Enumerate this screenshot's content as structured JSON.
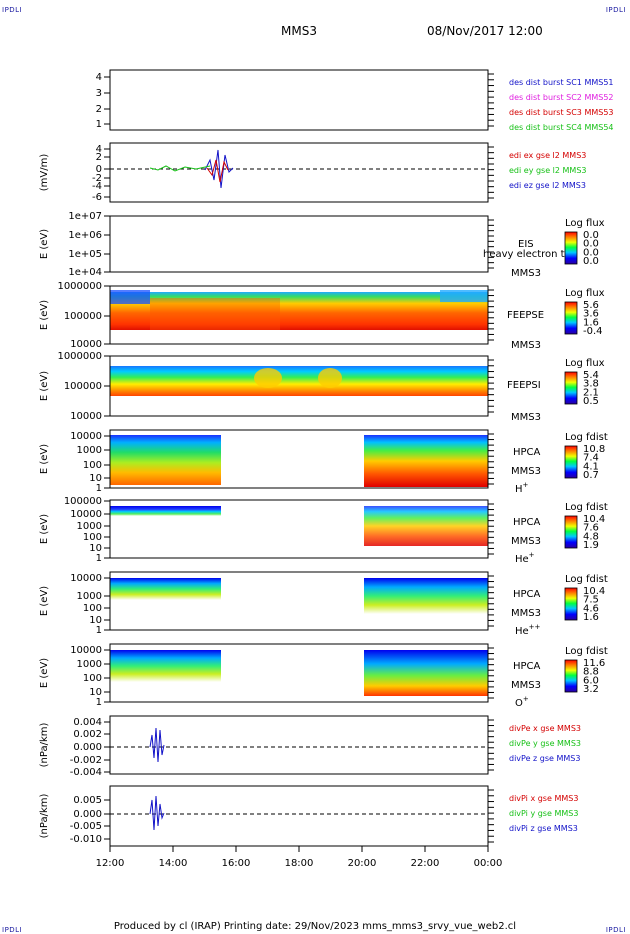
{
  "header": {
    "corner_tl": "IPDLI",
    "corner_tr": "IPDLI",
    "corner_bl": "IPDLI",
    "corner_br": "IPDLI",
    "title": "MMS3",
    "datetime": "08/Nov/2017 12:00"
  },
  "footer": {
    "text": "Produced by cl (IRAP)   Printing date: 29/Nov/2023   mms_mms3_srvy_vue_web2.cl"
  },
  "colors": {
    "red": "#d40000",
    "green": "#16c016",
    "blue": "#1212c8",
    "magenta": "#e020e0"
  },
  "chart_data": {
    "type": "stacked-panels",
    "x": {
      "ticks": [
        "12:00",
        "14:00",
        "16:00",
        "18:00",
        "20:00",
        "22:00",
        "00:00"
      ]
    },
    "panels": [
      {
        "id": "p1",
        "ylabel": "",
        "ticks": [
          "1",
          "2",
          "3",
          "4"
        ],
        "legend": [
          {
            "text": "des dist burst SC1 MMS51",
            "color": "#1212c8"
          },
          {
            "text": "des dist burst SC2 MMS52",
            "color": "#e020e0"
          },
          {
            "text": "des dist burst SC3 MMS53",
            "color": "#d40000"
          },
          {
            "text": "des dist burst SC4 MMS54",
            "color": "#16c016"
          }
        ]
      },
      {
        "id": "p2",
        "ylabel": "(mV/m)",
        "ticks": [
          "4",
          "2",
          "0",
          "-2",
          "-4",
          "-6"
        ],
        "legend": [
          {
            "text": "edi ex gse l2 MMS3",
            "color": "#d40000"
          },
          {
            "text": "edi ey gse l2 MMS3",
            "color": "#16c016"
          },
          {
            "text": "edi ez gse l2 MMS3",
            "color": "#1212c8"
          }
        ]
      },
      {
        "id": "p3",
        "ylabel": "E (eV)",
        "ticks": [
          "1e+07",
          "1e+06",
          "1e+05",
          "1e+04"
        ],
        "label1": "EIS",
        "label2": "heavy electron tof",
        "label3": "MMS3",
        "cb_title": "Log flux",
        "cb_ticks": [
          "0.0",
          "0.0",
          "0.0",
          "0.0"
        ]
      },
      {
        "id": "p4",
        "ylabel": "E (eV)",
        "ticks": [
          "1000000",
          "100000",
          "10000"
        ],
        "label1": "FEEPSE",
        "label2": "MMS3",
        "cb_title": "Log flux",
        "cb_ticks": [
          "5.6",
          "3.6",
          "1.6",
          "-0.4"
        ]
      },
      {
        "id": "p5",
        "ylabel": "E (eV)",
        "ticks": [
          "1000000",
          "100000",
          "10000"
        ],
        "label1": "FEEPSI",
        "label2": "MMS3",
        "cb_title": "Log flux",
        "cb_ticks": [
          "5.4",
          "3.8",
          "2.1",
          "0.5"
        ]
      },
      {
        "id": "p6",
        "ylabel": "E (eV)",
        "ticks": [
          "10000",
          "1000",
          "100",
          "10",
          "1"
        ],
        "label1": "HPCA",
        "label2": "MMS3",
        "label3": "H",
        "sup": "+",
        "cb_title": "Log fdist",
        "cb_ticks": [
          "10.8",
          "7.4",
          "4.1",
          "0.7"
        ]
      },
      {
        "id": "p7",
        "ylabel": "E (eV)",
        "ticks": [
          "100000",
          "10000",
          "1000",
          "100",
          "10",
          "1"
        ],
        "label1": "HPCA",
        "label2": "MMS3",
        "label3": "He",
        "sup": "+",
        "cb_title": "Log fdist",
        "cb_ticks": [
          "10.4",
          "7.6",
          "4.8",
          "1.9"
        ]
      },
      {
        "id": "p8",
        "ylabel": "E (eV)",
        "ticks": [
          "10000",
          "1000",
          "100",
          "10",
          "1"
        ],
        "label1": "HPCA",
        "label2": "MMS3",
        "label3": "He",
        "sup": "++",
        "cb_title": "Log fdist",
        "cb_ticks": [
          "10.4",
          "7.5",
          "4.6",
          "1.6"
        ]
      },
      {
        "id": "p9",
        "ylabel": "E (eV)",
        "ticks": [
          "10000",
          "1000",
          "100",
          "10",
          "1"
        ],
        "label1": "HPCA",
        "label2": "MMS3",
        "label3": "O",
        "sup": "+",
        "cb_title": "Log fdist",
        "cb_ticks": [
          "11.6",
          "8.8",
          "6.0",
          "3.2"
        ]
      },
      {
        "id": "p10",
        "ylabel": "(nPa/km)",
        "ticks": [
          "0.004",
          "0.002",
          "0.000",
          "-0.002",
          "-0.004"
        ],
        "legend": [
          {
            "text": "divPe x gse MMS3",
            "color": "#d40000"
          },
          {
            "text": "divPe y gse MMS3",
            "color": "#16c016"
          },
          {
            "text": "divPe z gse MMS3",
            "color": "#1212c8"
          }
        ]
      },
      {
        "id": "p11",
        "ylabel": "(nPa/km)",
        "ticks": [
          "0.005",
          "0.000",
          "-0.005",
          "-0.010"
        ],
        "legend": [
          {
            "text": "divPi x gse MMS3",
            "color": "#d40000"
          },
          {
            "text": "divPi y gse MMS3",
            "color": "#16c016"
          },
          {
            "text": "divPi z gse MMS3",
            "color": "#1212c8"
          }
        ]
      }
    ]
  }
}
